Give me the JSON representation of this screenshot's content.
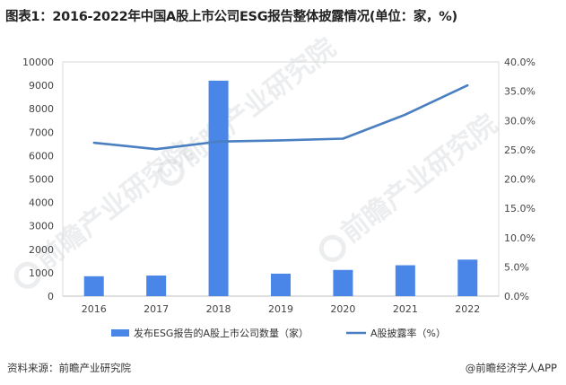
{
  "header": {
    "title": "图表1：2016-2022年中国A股上市公司ESG报告整体披露情况(单位：家，%)"
  },
  "footer": {
    "source": "资料来源：前瞻产业研究院",
    "brand": "@前瞻经济学人APP"
  },
  "watermark": {
    "text": "前瞻产业研究院"
  },
  "colors": {
    "bar": "#4a86e8",
    "line": "#4a7fc1",
    "grid": "#d9d9d9"
  },
  "chart_data": {
    "type": "bar",
    "categories": [
      "2016",
      "2017",
      "2018",
      "2019",
      "2020",
      "2021",
      "2022"
    ],
    "series": [
      {
        "name": "发布ESG报告的A股上市公司数量（家）",
        "type": "bar",
        "axis": "left",
        "values": [
          850,
          880,
          9200,
          960,
          1120,
          1320,
          1560
        ]
      },
      {
        "name": "A股披露率（%）",
        "type": "line",
        "axis": "right",
        "values": [
          26.2,
          25.1,
          26.4,
          26.6,
          26.9,
          31.0,
          36.0
        ]
      }
    ],
    "left_axis": {
      "ylim": [
        0,
        10000
      ],
      "ticks": [
        "0",
        "1000",
        "2000",
        "3000",
        "4000",
        "5000",
        "6000",
        "7000",
        "8000",
        "9000",
        "10000"
      ]
    },
    "right_axis": {
      "ylim": [
        0,
        40
      ],
      "ticks": [
        "0.0%",
        "5.0%",
        "10.0%",
        "15.0%",
        "20.0%",
        "25.0%",
        "30.0%",
        "35.0%",
        "40.0%"
      ]
    },
    "grid": false,
    "legend_position": "bottom"
  }
}
